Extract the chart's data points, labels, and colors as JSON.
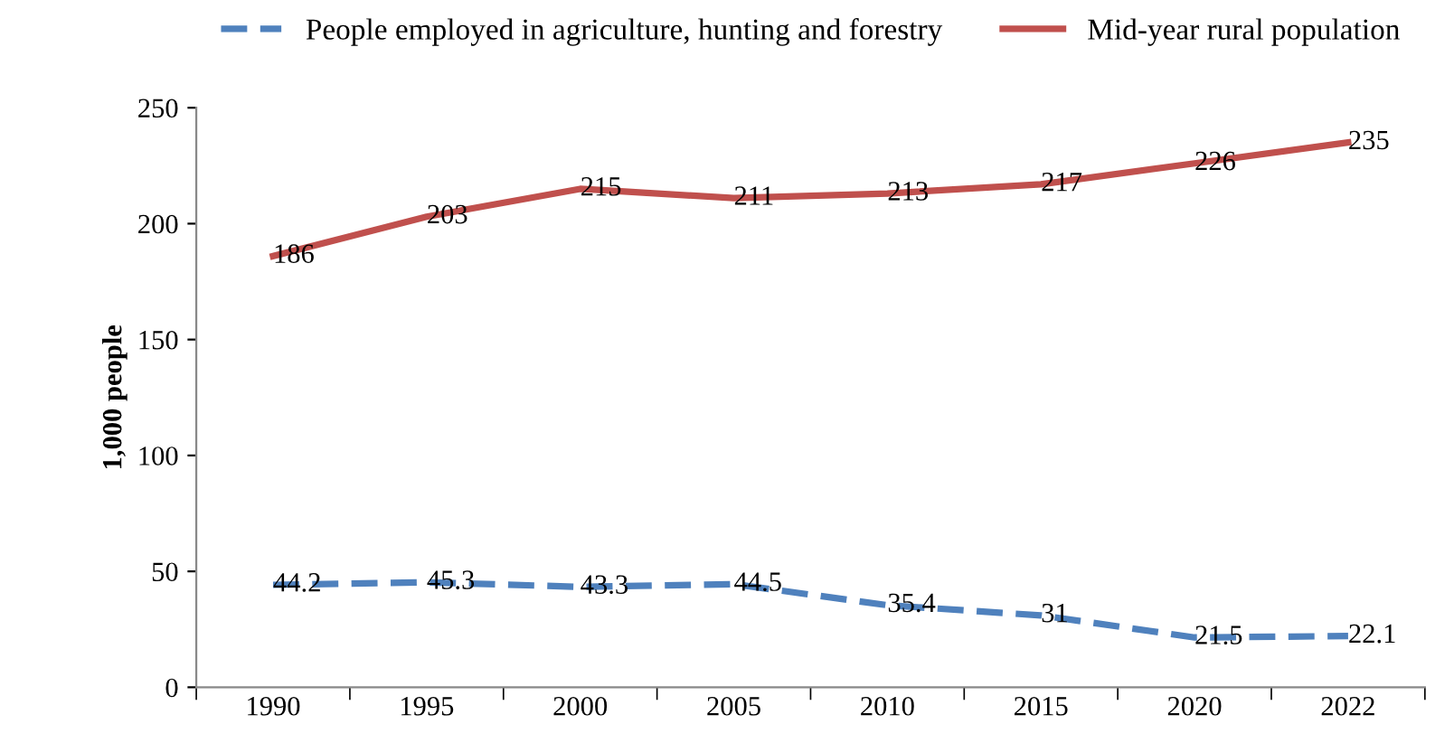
{
  "chart_data": {
    "type": "line",
    "ylabel": "1,000 people",
    "categories": [
      "1990",
      "1995",
      "2000",
      "2005",
      "2010",
      "2015",
      "2020",
      "2022"
    ],
    "series": [
      {
        "name": "People employed in agriculture, hunting and forestry",
        "color": "#4f81bd",
        "line_style": "dashed",
        "values": [
          44.2,
          45.3,
          43.3,
          44.5,
          35.4,
          31,
          21.5,
          22.1
        ]
      },
      {
        "name": "Mid-year rural population",
        "color": "#c0504d",
        "line_style": "solid",
        "values": [
          186,
          203,
          215,
          211,
          213,
          217,
          226,
          235
        ]
      }
    ],
    "ylim": [
      0,
      250
    ],
    "yticks": [
      0,
      50,
      100,
      150,
      200,
      250
    ],
    "data_labels": true,
    "grid": false,
    "legend": "top",
    "marker": "none"
  }
}
